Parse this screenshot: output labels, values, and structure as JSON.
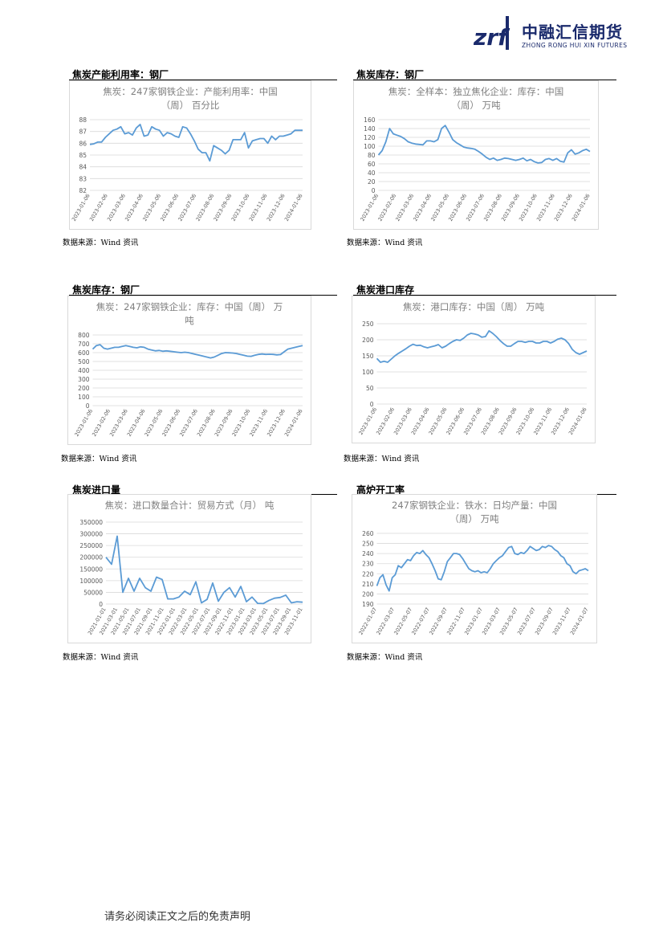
{
  "header": {
    "logo_mark": "zrf",
    "company_cn": "中融汇信期货",
    "company_en": "ZHONG RONG HUI XIN FUTURES"
  },
  "sections": [
    {
      "title": "焦炭产能利用率：钢厂",
      "source": "数据来源：Wind 资讯"
    },
    {
      "title": "焦炭库存：钢厂",
      "source": "数据来源：Wind 资讯"
    },
    {
      "title": "焦炭库存：钢厂",
      "source": "数据来源：Wind 资讯"
    },
    {
      "title": "焦炭港口库存",
      "source": "数据来源：Wind 资讯"
    },
    {
      "title": "焦炭进口量",
      "source": "数据来源：Wind 资讯"
    },
    {
      "title": "高炉开工率",
      "source": "数据来源：Wind 资讯"
    }
  ],
  "footer": {
    "disclaimer": "请务必阅读正文之后的免责声明"
  },
  "colors": {
    "line": "#5b9bd5",
    "grid": "#d9d9d9",
    "axis_text": "#595959",
    "title_text": "#7f7f7f",
    "logo": "#1a2a6c"
  },
  "chart_data": [
    {
      "type": "line",
      "title_lines": [
        "焦炭：247家钢铁企业：产能利用率：中国",
        "（周） 百分比"
      ],
      "yticks": [
        82,
        83,
        84,
        85,
        86,
        87,
        88
      ],
      "ylim": [
        82,
        88
      ],
      "xticks": [
        "2023-01-06",
        "2023-02-06",
        "2023-03-06",
        "2023-04-06",
        "2023-05-06",
        "2023-06-06",
        "2023-07-06",
        "2023-08-06",
        "2023-09-06",
        "2023-10-06",
        "2023-11-06",
        "2023-12-06",
        "2024-01-06"
      ],
      "values": [
        85.9,
        85.95,
        86.1,
        86.1,
        86.5,
        86.8,
        87.1,
        87.2,
        87.4,
        86.8,
        86.9,
        86.7,
        87.3,
        87.6,
        86.6,
        86.7,
        87.4,
        87.2,
        87.1,
        86.6,
        86.9,
        86.8,
        86.6,
        86.5,
        87.4,
        87.3,
        86.8,
        86.2,
        85.5,
        85.2,
        85.2,
        84.5,
        85.8,
        85.6,
        85.4,
        85.1,
        85.4,
        86.3,
        86.3,
        86.3,
        86.9,
        85.6,
        86.2,
        86.3,
        86.4,
        86.4,
        86.0,
        86.6,
        86.3,
        86.6,
        86.6,
        86.7,
        86.8,
        87.1,
        87.1,
        87.1
      ]
    },
    {
      "type": "line",
      "title_lines": [
        "焦炭：全样本：独立焦化企业：库存：中国",
        "（周） 万吨"
      ],
      "yticks": [
        0,
        20,
        40,
        60,
        80,
        100,
        120,
        140,
        160
      ],
      "ylim": [
        0,
        160
      ],
      "xticks": [
        "2023-01-06",
        "2023-02-06",
        "2023-03-06",
        "2023-04-06",
        "2023-05-06",
        "2023-06-06",
        "2023-07-06",
        "2023-08-06",
        "2023-09-06",
        "2023-10-06",
        "2023-11-06",
        "2023-12-06",
        "2024-01-06"
      ],
      "values": [
        80,
        90,
        110,
        140,
        128,
        125,
        122,
        117,
        110,
        107,
        105,
        104,
        103,
        112,
        112,
        110,
        115,
        140,
        147,
        132,
        115,
        108,
        103,
        98,
        96,
        95,
        93,
        88,
        82,
        75,
        70,
        73,
        68,
        70,
        73,
        72,
        70,
        68,
        70,
        73,
        67,
        70,
        65,
        62,
        63,
        70,
        72,
        68,
        72,
        66,
        64,
        85,
        92,
        82,
        85,
        90,
        93,
        88
      ]
    },
    {
      "type": "line",
      "title_lines": [
        "焦炭：247家钢铁企业：库存：中国（周） 万",
        "吨"
      ],
      "yticks": [
        0,
        100,
        200,
        300,
        400,
        500,
        600,
        700,
        800
      ],
      "ylim": [
        0,
        800
      ],
      "xticks": [
        "2023-01-06",
        "2023-02-06",
        "2023-03-06",
        "2023-04-06",
        "2023-05-06",
        "2023-06-06",
        "2023-07-06",
        "2023-08-06",
        "2023-09-06",
        "2023-10-06",
        "2023-11-06",
        "2023-12-06",
        "2024-01-06"
      ],
      "values": [
        640,
        680,
        690,
        650,
        640,
        650,
        660,
        660,
        670,
        680,
        670,
        660,
        655,
        665,
        660,
        640,
        630,
        620,
        625,
        615,
        620,
        615,
        610,
        605,
        600,
        605,
        600,
        590,
        580,
        570,
        560,
        550,
        540,
        550,
        570,
        590,
        600,
        598,
        595,
        590,
        580,
        570,
        560,
        558,
        570,
        580,
        585,
        580,
        582,
        580,
        575,
        578,
        610,
        640,
        650,
        660,
        670,
        680
      ]
    },
    {
      "type": "line",
      "title_lines": [
        "焦炭：港口库存：中国（周） 万吨"
      ],
      "yticks": [
        0,
        50,
        100,
        150,
        200,
        250
      ],
      "ylim": [
        0,
        250
      ],
      "xticks": [
        "2023-01-06",
        "2023-02-06",
        "2023-03-06",
        "2023-04-06",
        "2023-05-06",
        "2023-06-06",
        "2023-07-06",
        "2023-08-06",
        "2023-09-06",
        "2023-10-06",
        "2023-11-06",
        "2023-12-06",
        "2024-01-06"
      ],
      "values": [
        142,
        130,
        133,
        130,
        140,
        150,
        158,
        165,
        172,
        180,
        186,
        182,
        183,
        178,
        175,
        178,
        181,
        185,
        175,
        180,
        188,
        195,
        200,
        198,
        205,
        215,
        220,
        218,
        215,
        208,
        210,
        228,
        220,
        210,
        198,
        188,
        180,
        180,
        188,
        195,
        195,
        192,
        195,
        195,
        190,
        190,
        195,
        195,
        190,
        195,
        202,
        205,
        200,
        188,
        170,
        160,
        155,
        160,
        165
      ]
    },
    {
      "type": "line",
      "title_lines": [
        "焦炭：进口数量合计：贸易方式（月） 吨"
      ],
      "yticks": [
        0,
        50000,
        100000,
        150000,
        200000,
        250000,
        300000,
        350000
      ],
      "ylim": [
        0,
        350000
      ],
      "xticks": [
        "2021-01-01",
        "2021-03-01",
        "2021-05-01",
        "2021-07-01",
        "2021-09-01",
        "2021-11-01",
        "2022-01-01",
        "2022-03-01",
        "2022-05-01",
        "2022-07-01",
        "2022-09-01",
        "2022-11-01",
        "2023-01-01",
        "2023-03-01",
        "2023-05-01",
        "2023-07-01",
        "2023-09-01",
        "2023-11-01"
      ],
      "values": [
        200000,
        170000,
        290000,
        50000,
        110000,
        55000,
        110000,
        70000,
        55000,
        115000,
        105000,
        22000,
        22000,
        30000,
        55000,
        40000,
        95000,
        5000,
        20000,
        90000,
        12000,
        50000,
        70000,
        30000,
        75000,
        10000,
        30000,
        3000,
        2000,
        15000,
        25000,
        28000,
        38000,
        5000,
        10000,
        8000
      ]
    },
    {
      "type": "line",
      "title_lines": [
        "247家钢铁企业：铁水：日均产量：中国",
        "（周） 万吨"
      ],
      "yticks": [
        190,
        200,
        210,
        220,
        230,
        240,
        250,
        260
      ],
      "ylim": [
        190,
        260
      ],
      "xticks": [
        "2022-01-07",
        "2022-03-07",
        "2022-05-07",
        "2022-07-07",
        "2022-09-07",
        "2022-11-07",
        "2023-01-07",
        "2023-03-07",
        "2023-05-07",
        "2023-07-07",
        "2023-09-07",
        "2023-11-07",
        "2024-01-07"
      ],
      "values": [
        208,
        216,
        219,
        209,
        203,
        216,
        219,
        228,
        226,
        230,
        234,
        233,
        238,
        241,
        240,
        243,
        239,
        236,
        230,
        223,
        215,
        214,
        222,
        232,
        236,
        240,
        240,
        239,
        235,
        230,
        225,
        223,
        222,
        223,
        221,
        222,
        221,
        225,
        230,
        233,
        236,
        238,
        242,
        246,
        247,
        240,
        239,
        241,
        240,
        243,
        247,
        245,
        243,
        244,
        247,
        246,
        248,
        247,
        244,
        242,
        238,
        236,
        230,
        228,
        222,
        220,
        223,
        224,
        225,
        223
      ]
    }
  ]
}
